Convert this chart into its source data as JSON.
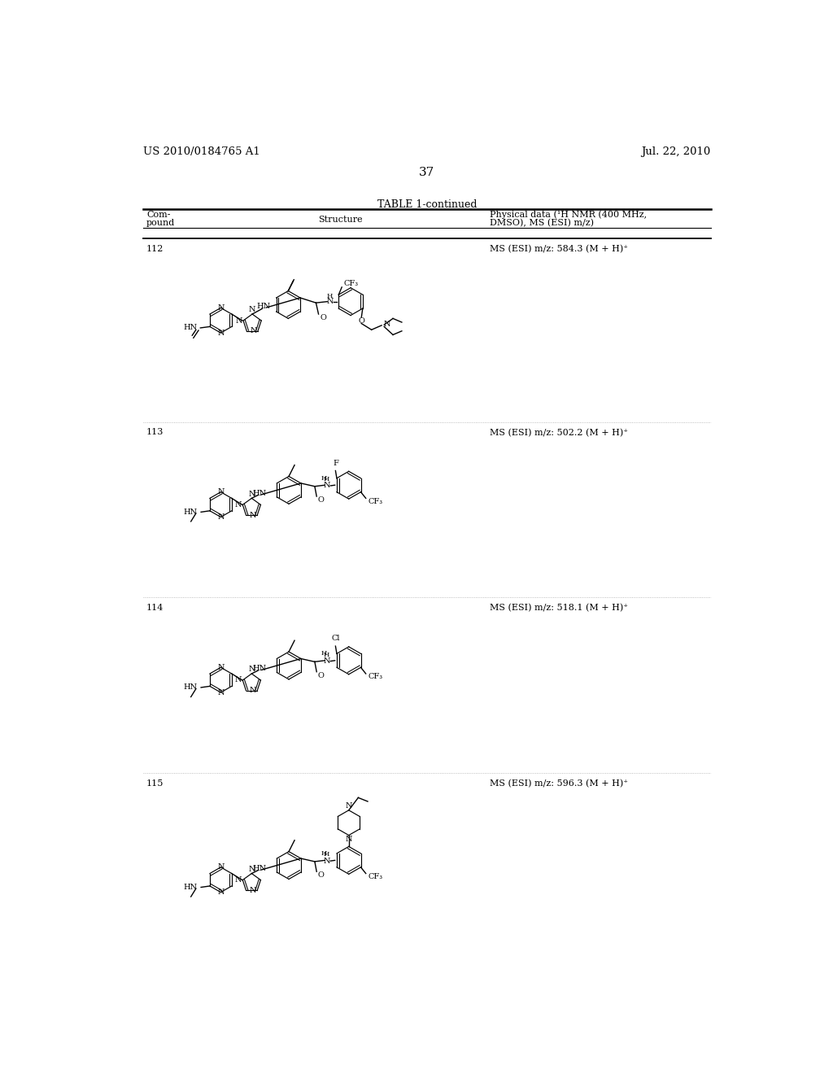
{
  "page_number": "37",
  "header_left": "US 2010/0184765 A1",
  "header_right": "Jul. 22, 2010",
  "table_title": "TABLE 1-continued",
  "col1_line1": "Com-",
  "col1_line2": "pound",
  "col2": "Structure",
  "col3_line1": "Physical data (¹H NMR (400 MHz,",
  "col3_line2": "DMSO), MS (ESI) m/z)",
  "compounds": [
    {
      "number": "112",
      "ms": "MS (ESI) m/z: 584.3 (M + H)⁺"
    },
    {
      "number": "113",
      "ms": "MS (ESI) m/z: 502.2 (M + H)⁺"
    },
    {
      "number": "114",
      "ms": "MS (ESI) m/z: 518.1 (M + H)⁺"
    },
    {
      "number": "115",
      "ms": "MS (ESI) m/z: 596.3 (M + H)⁺"
    }
  ],
  "bg": "#ffffff",
  "fg": "#000000"
}
